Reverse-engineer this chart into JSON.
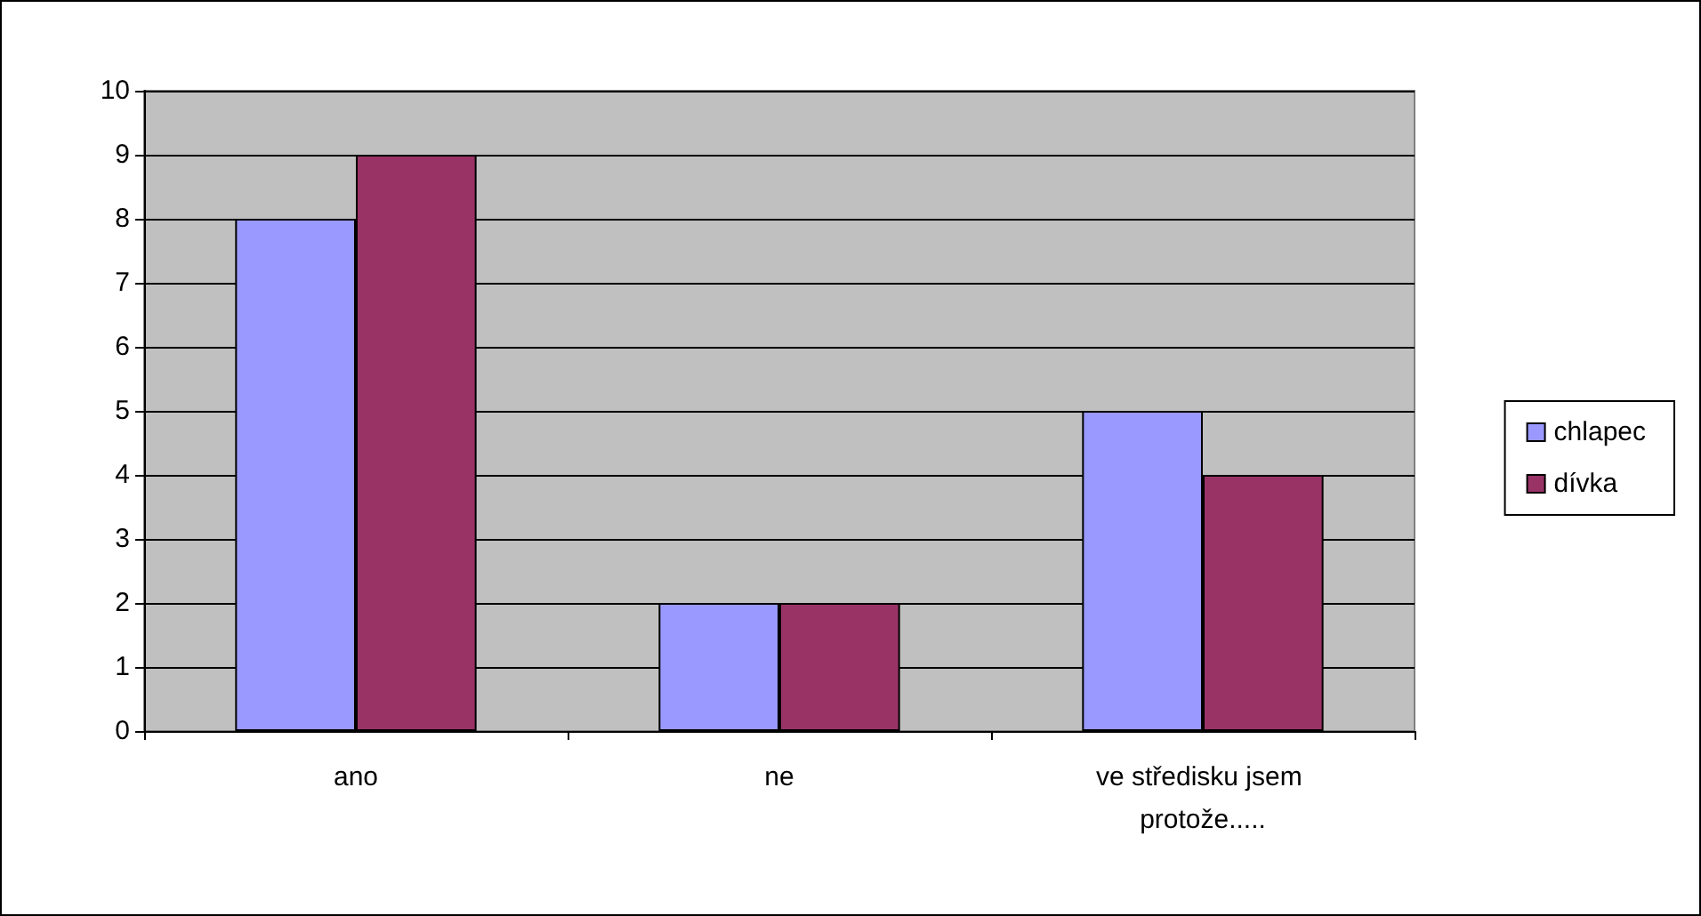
{
  "chart_data": {
    "type": "bar",
    "categories": [
      "ano",
      "ne",
      "ve středisku jsem protože....."
    ],
    "series": [
      {
        "name": "chlapec",
        "color": "#9999ff",
        "values": [
          8,
          2,
          5
        ]
      },
      {
        "name": "dívka",
        "color": "#993366",
        "values": [
          9,
          2,
          4
        ]
      }
    ],
    "ylim": [
      0,
      10
    ],
    "yticks": [
      0,
      1,
      2,
      3,
      4,
      5,
      6,
      7,
      8,
      9,
      10
    ],
    "grid": "y",
    "legend": "right"
  }
}
